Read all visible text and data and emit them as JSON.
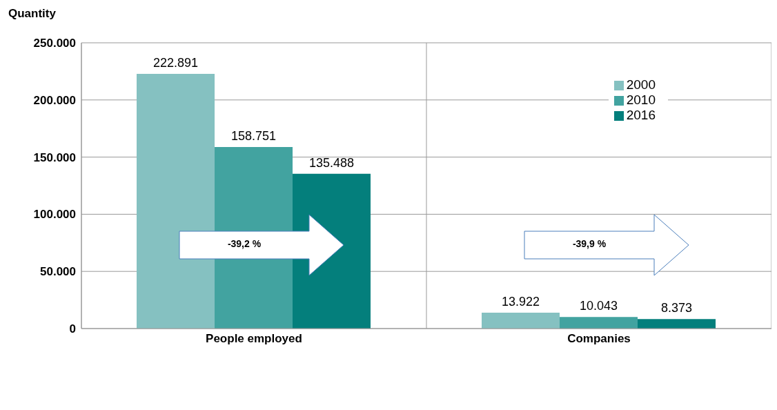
{
  "chart_data": {
    "type": "bar",
    "ylabel": "Quantity",
    "categories": [
      "People employed",
      "Companies"
    ],
    "series": [
      {
        "name": "2000",
        "color": "#85c1c1",
        "values": [
          222891,
          13922
        ],
        "value_labels": [
          "222.891",
          "13.922"
        ]
      },
      {
        "name": "2010",
        "color": "#42a3a0",
        "values": [
          158751,
          10043
        ],
        "value_labels": [
          "158.751",
          "10.043"
        ]
      },
      {
        "name": "2016",
        "color": "#047f7c",
        "values": [
          135488,
          8373
        ],
        "value_labels": [
          "135.488",
          "8.373"
        ]
      }
    ],
    "ylim": [
      0,
      250000
    ],
    "yticks": [
      {
        "value": 0,
        "label": "0"
      },
      {
        "value": 50000,
        "label": "50.000"
      },
      {
        "value": 100000,
        "label": "100.000"
      },
      {
        "value": 150000,
        "label": "150.000"
      },
      {
        "value": 200000,
        "label": "200.000"
      },
      {
        "value": 250000,
        "label": "250.000"
      }
    ],
    "grid": true,
    "legend": "top right",
    "annotations": [
      "-39,2 %",
      "-39,9 %"
    ]
  }
}
